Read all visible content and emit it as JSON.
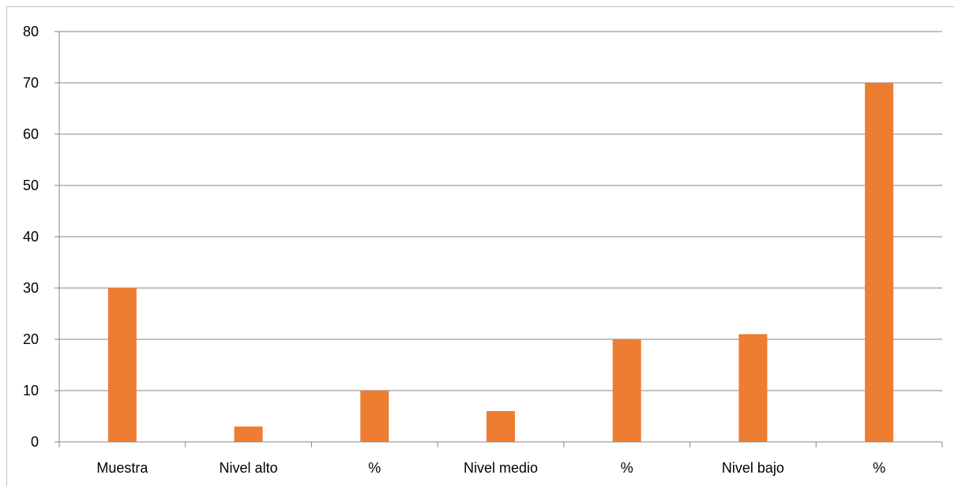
{
  "chart_data": {
    "type": "bar",
    "categories": [
      "Muestra",
      "Nivel alto",
      "%",
      "Nivel medio",
      "%",
      "Nivel bajo",
      "%"
    ],
    "series": [
      {
        "values": [
          30,
          3,
          10,
          6,
          20,
          21,
          70
        ]
      }
    ],
    "ylim": [
      0,
      80
    ],
    "yticks": [
      "0",
      "10",
      "20",
      "30",
      "40",
      "50",
      "60",
      "70",
      "80"
    ],
    "grid": true,
    "legend": "none",
    "colors": {
      "bar": "#ed7d31",
      "grid": "#868686",
      "axis": "#868686",
      "text": "#000000"
    }
  }
}
